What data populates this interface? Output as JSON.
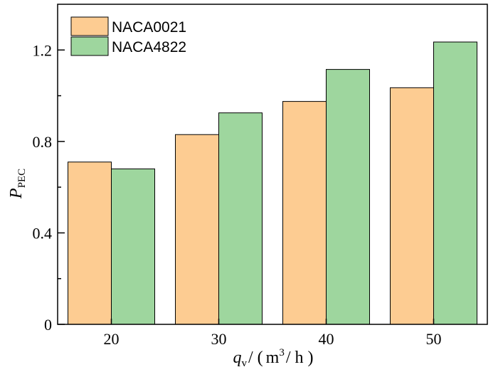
{
  "chart_data": {
    "type": "bar",
    "categories": [
      "20",
      "30",
      "40",
      "50"
    ],
    "series": [
      {
        "name": "NACA0021",
        "values": [
          0.71,
          0.83,
          0.975,
          1.035
        ],
        "color": "#FDCC92"
      },
      {
        "name": "NACA4822",
        "values": [
          0.68,
          0.925,
          1.115,
          1.235
        ],
        "color": "#9ED69E"
      }
    ],
    "ylim": [
      0,
      1.4
    ],
    "yticks": [
      "0",
      "0.4",
      "0.8",
      "1.2"
    ],
    "ytick_values": [
      0,
      0.4,
      0.8,
      1.2
    ],
    "ylabel": {
      "main": "P",
      "sub": "PEC"
    },
    "xlabel": {
      "var": "q",
      "sub": "v",
      "sep": "/ (",
      "unit_a": "m",
      "sup": "3",
      "unit_b": "/ h )"
    },
    "legend_position": "top-left",
    "grid": false
  }
}
